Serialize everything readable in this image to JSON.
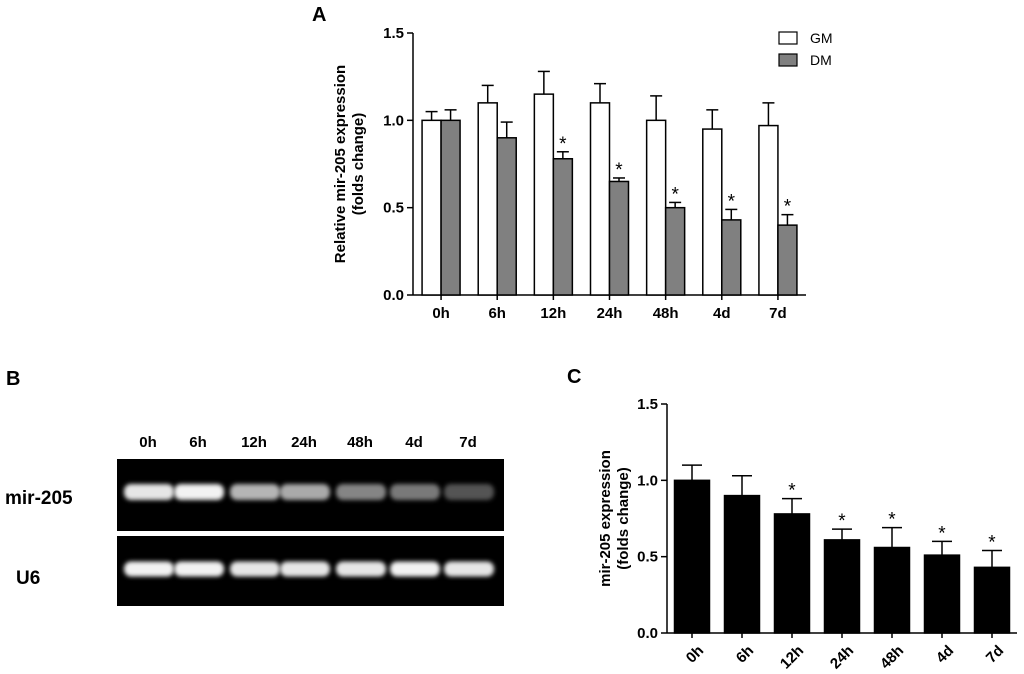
{
  "panels": {
    "A": "A",
    "B": "B",
    "C": "C"
  },
  "colors": {
    "gm_fill": "#ffffff",
    "dm_fill": "#808080",
    "c_fill": "#000000",
    "axis": "#000000",
    "blot_background": "#000000",
    "band": "#f2f2f2"
  },
  "chart_data": [
    {
      "id": "A",
      "type": "bar",
      "categories": [
        "0h",
        "6h",
        "12h",
        "24h",
        "48h",
        "4d",
        "7d"
      ],
      "series": [
        {
          "name": "GM",
          "values": [
            1.0,
            1.1,
            1.15,
            1.1,
            1.0,
            0.95,
            0.97
          ],
          "errors": [
            0.05,
            0.1,
            0.13,
            0.11,
            0.14,
            0.11,
            0.13
          ],
          "significant": [
            false,
            false,
            false,
            false,
            false,
            false,
            false
          ]
        },
        {
          "name": "DM",
          "values": [
            1.0,
            0.9,
            0.78,
            0.65,
            0.5,
            0.43,
            0.4
          ],
          "errors": [
            0.06,
            0.09,
            0.04,
            0.02,
            0.03,
            0.06,
            0.06
          ],
          "significant": [
            false,
            false,
            true,
            true,
            true,
            true,
            true
          ]
        }
      ],
      "significance_marker": "*",
      "ylabel": [
        "Relative mir-205 expression",
        "(folds change)"
      ],
      "ylim": [
        0,
        1.5
      ],
      "yticks": [
        "0.0",
        "0.5",
        "1.0",
        "1.5"
      ],
      "grid": false,
      "legend_position": "top-right"
    },
    {
      "id": "C",
      "type": "bar",
      "categories": [
        "0h",
        "6h",
        "12h",
        "24h",
        "48h",
        "4d",
        "7d"
      ],
      "series": [
        {
          "values": [
            1.0,
            0.9,
            0.78,
            0.61,
            0.56,
            0.51,
            0.43
          ],
          "errors": [
            0.1,
            0.13,
            0.1,
            0.07,
            0.13,
            0.09,
            0.11
          ],
          "significant": [
            false,
            false,
            true,
            true,
            true,
            true,
            true
          ]
        }
      ],
      "significance_marker": "*",
      "ylabel": [
        "mir-205 expression",
        "(folds change)"
      ],
      "ylim": [
        0,
        1.5
      ],
      "yticks": [
        "0.0",
        "0.5",
        "1.0",
        "1.5"
      ],
      "grid": false,
      "xtick_rotation": "rotated-45"
    }
  ],
  "blot": {
    "lanes": [
      "0h",
      "6h",
      "12h",
      "24h",
      "48h",
      "4d",
      "7d"
    ],
    "rows": [
      {
        "label": "mir-205",
        "intensity": [
          0.95,
          1.0,
          0.75,
          0.7,
          0.55,
          0.5,
          0.35
        ]
      },
      {
        "label": "U6",
        "intensity": [
          1.0,
          1.0,
          0.95,
          0.95,
          0.95,
          1.0,
          0.95
        ]
      }
    ]
  }
}
